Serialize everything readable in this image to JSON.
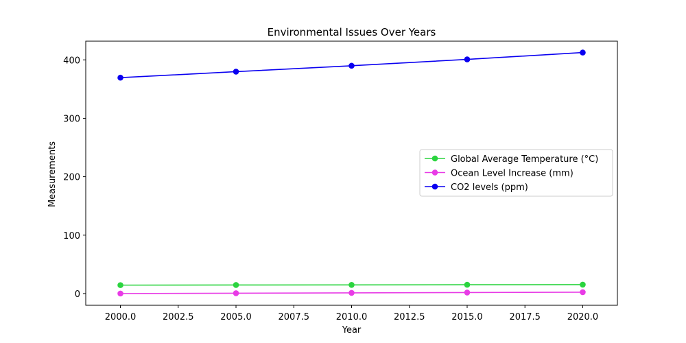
{
  "chart_data": {
    "type": "line",
    "title": "Environmental Issues Over Years",
    "xlabel": "Year",
    "ylabel": "Measurements",
    "x": [
      2000,
      2005,
      2010,
      2015,
      2020
    ],
    "xlim": [
      1998.5,
      2021.5
    ],
    "ylim": [
      -20,
      432
    ],
    "xticks": [
      "2000.0",
      "2002.5",
      "2005.0",
      "2007.5",
      "2010.0",
      "2012.5",
      "2015.0",
      "2017.5",
      "2020.0"
    ],
    "xtick_values": [
      2000,
      2002.5,
      2005,
      2007.5,
      2010,
      2012.5,
      2015,
      2017.5,
      2020
    ],
    "yticks": [
      "0",
      "100",
      "200",
      "300",
      "400"
    ],
    "ytick_values": [
      0,
      100,
      200,
      300,
      400
    ],
    "grid": false,
    "legend_position": "center-right",
    "series": [
      {
        "name": "Global Average Temperature (°C)",
        "color": "#2bd43f",
        "values": [
          14.5,
          14.7,
          14.9,
          15.1,
          15.3
        ]
      },
      {
        "name": "Ocean Level Increase (mm)",
        "color": "#e83be6",
        "values": [
          0.1,
          0.6,
          1.2,
          1.8,
          2.4
        ]
      },
      {
        "name": "CO2 levels (ppm)",
        "color": "#0a00f0",
        "values": [
          369.5,
          379.8,
          389.9,
          400.8,
          412.5
        ]
      }
    ]
  }
}
